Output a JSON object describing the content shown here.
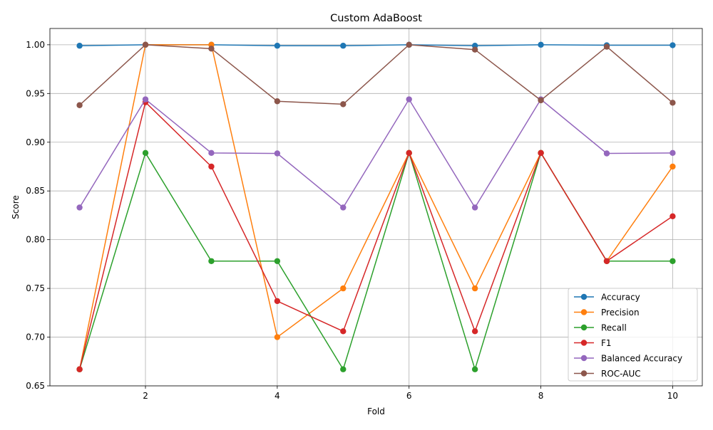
{
  "chart_data": {
    "type": "line",
    "title": "Custom AdaBoost",
    "xlabel": "Fold",
    "ylabel": "Score",
    "x": [
      1,
      2,
      3,
      4,
      5,
      6,
      7,
      8,
      9,
      10
    ],
    "xlim": [
      0.55,
      10.45
    ],
    "ylim": [
      0.65,
      1.0167
    ],
    "xticks": [
      2,
      4,
      6,
      8,
      10
    ],
    "yticks": [
      0.65,
      0.7,
      0.75,
      0.8,
      0.85,
      0.9,
      0.95,
      1.0
    ],
    "grid": true,
    "legend_position": "lower-right",
    "series": [
      {
        "name": "Accuracy",
        "color": "#1f77b4",
        "values": [
          0.999,
          1.0,
          1.0,
          0.999,
          0.999,
          1.0,
          0.999,
          1.0,
          0.9995,
          0.9995
        ]
      },
      {
        "name": "Precision",
        "color": "#ff7f0e",
        "values": [
          0.667,
          1.0,
          1.0,
          0.7,
          0.75,
          0.889,
          0.75,
          0.889,
          0.778,
          0.875
        ]
      },
      {
        "name": "Recall",
        "color": "#2ca02c",
        "values": [
          0.667,
          0.889,
          0.778,
          0.778,
          0.667,
          0.889,
          0.667,
          0.889,
          0.778,
          0.778
        ]
      },
      {
        "name": "F1",
        "color": "#d62728",
        "values": [
          0.667,
          0.941,
          0.875,
          0.737,
          0.706,
          0.889,
          0.706,
          0.889,
          0.778,
          0.824
        ]
      },
      {
        "name": "Balanced Accuracy",
        "color": "#9467bd",
        "values": [
          0.833,
          0.944,
          0.889,
          0.8885,
          0.833,
          0.944,
          0.833,
          0.944,
          0.8885,
          0.889
        ]
      },
      {
        "name": "ROC-AUC",
        "color": "#8c564b",
        "values": [
          0.938,
          1.0,
          0.996,
          0.942,
          0.939,
          1.0,
          0.995,
          0.943,
          0.998,
          0.9405
        ]
      }
    ]
  }
}
